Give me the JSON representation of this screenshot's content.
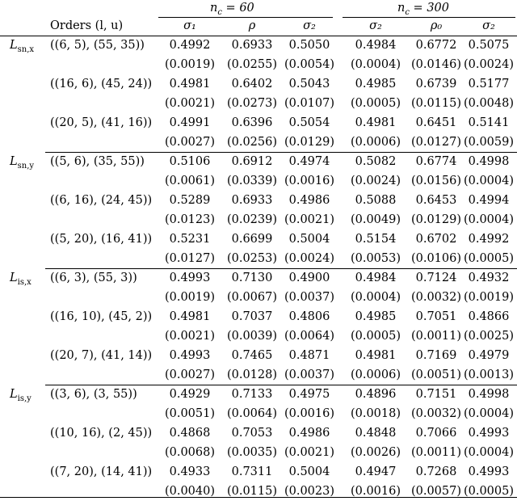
{
  "header": {
    "group1": "n_c = 60",
    "group2": "n_c = 300",
    "orders_label": "Orders (l, u)",
    "columns": [
      "σ1",
      "ρ",
      "σ2",
      "σ2",
      "ρ0",
      "σ2"
    ]
  },
  "blocks": [
    {
      "label_main": "L",
      "label_sub": "sn,x",
      "rows": [
        {
          "order": "((6,5),(55,35))",
          "values": [
            "0.4992",
            "0.6933",
            "0.5050",
            "0.4984",
            "0.6772",
            "0.5075"
          ],
          "se": [
            "(0.0019)",
            "(0.0255)",
            "(0.0054)",
            "(0.0004)",
            "(0.0146)",
            "(0.0024)"
          ]
        },
        {
          "order": "((16,6),(45,24))",
          "values": [
            "0.4981",
            "0.6402",
            "0.5043",
            "0.4985",
            "0.6739",
            "0.5177"
          ],
          "se": [
            "(0.0021)",
            "(0.0273)",
            "(0.0107)",
            "(0.0005)",
            "(0.0115)",
            "(0.0048)"
          ]
        },
        {
          "order": "((20,5),(41,16))",
          "values": [
            "0.4991",
            "0.6396",
            "0.5054",
            "0.4981",
            "0.6451",
            "0.5141"
          ],
          "se": [
            "(0.0027)",
            "(0.0256)",
            "(0.0129)",
            "(0.0006)",
            "(0.0127)",
            "(0.0059)"
          ]
        }
      ]
    },
    {
      "label_main": "L",
      "label_sub": "sn,y",
      "rows": [
        {
          "order": "((5,6),(35,55))",
          "values": [
            "0.5106",
            "0.6912",
            "0.4974",
            "0.5082",
            "0.6774",
            "0.4998"
          ],
          "se": [
            "(0.0061)",
            "(0.0339)",
            "(0.0016)",
            "(0.0024)",
            "(0.0156)",
            "(0.0004)"
          ]
        },
        {
          "order": "((6,16),(24,45))",
          "values": [
            "0.5289",
            "0.6933",
            "0.4986",
            "0.5088",
            "0.6453",
            "0.4994"
          ],
          "se": [
            "(0.0123)",
            "(0.0239)",
            "(0.0021)",
            "(0.0049)",
            "(0.0129)",
            "(0.0004)"
          ]
        },
        {
          "order": "((5,20),(16,41))",
          "values": [
            "0.5231",
            "0.6699",
            "0.5004",
            "0.5154",
            "0.6702",
            "0.4992"
          ],
          "se": [
            "(0.0127)",
            "(0.0253)",
            "(0.0024)",
            "(0.0053)",
            "(0.0106)",
            "(0.0005)"
          ]
        }
      ]
    },
    {
      "label_main": "L",
      "label_sub": "is,x",
      "rows": [
        {
          "order": "((6,3),(55,3))",
          "values": [
            "0.4993",
            "0.7130",
            "0.4900",
            "0.4984",
            "0.7124",
            "0.4932"
          ],
          "se": [
            "(0.0019)",
            "(0.0067)",
            "(0.0037)",
            "(0.0004)",
            "(0.0032)",
            "(0.0019)"
          ]
        },
        {
          "order": "((16,10),(45,2))",
          "values": [
            "0.4981",
            "0.7037",
            "0.4806",
            "0.4985",
            "0.7051",
            "0.4866"
          ],
          "se": [
            "(0.0021)",
            "(0.0039)",
            "(0.0064)",
            "(0.0005)",
            "(0.0011)",
            "(0.0025)"
          ]
        },
        {
          "order": "((20,7),(41,14))",
          "values": [
            "0.4993",
            "0.7465",
            "0.4871",
            "0.4981",
            "0.7169",
            "0.4979"
          ],
          "se": [
            "(0.0027)",
            "(0.0128)",
            "(0.0037)",
            "(0.0006)",
            "(0.0051)",
            "(0.0013)"
          ]
        }
      ]
    },
    {
      "label_main": "L",
      "label_sub": "is,y",
      "rows": [
        {
          "order": "((3,6),(3,55))",
          "values": [
            "0.4929",
            "0.7133",
            "0.4975",
            "0.4896",
            "0.7151",
            "0.4998"
          ],
          "se": [
            "(0.0051)",
            "(0.0064)",
            "(0.0016)",
            "(0.0018)",
            "(0.0032)",
            "(0.0004)"
          ]
        },
        {
          "order": "((10,16),(2,45))",
          "values": [
            "0.4868",
            "0.7053",
            "0.4986",
            "0.4848",
            "0.7066",
            "0.4993"
          ],
          "se": [
            "(0.0068)",
            "(0.0035)",
            "(0.0021)",
            "(0.0026)",
            "(0.0011)",
            "(0.0004)"
          ]
        },
        {
          "order": "((7,20),(14,41))",
          "values": [
            "0.4933",
            "0.7311",
            "0.5004",
            "0.4947",
            "0.7268",
            "0.4993"
          ],
          "se": [
            "(0.0040)",
            "(0.0115)",
            "(0.0023)",
            "(0.0016)",
            "(0.0057)",
            "(0.0005)"
          ]
        }
      ]
    }
  ]
}
